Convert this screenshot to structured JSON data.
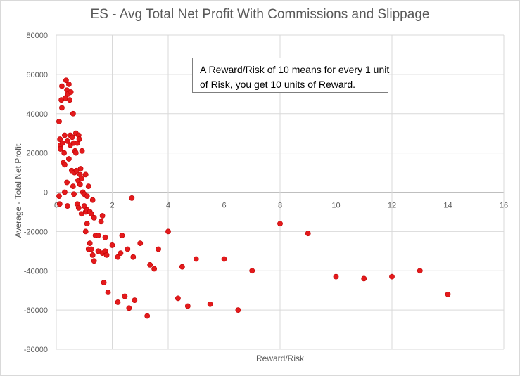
{
  "chart_data": {
    "type": "scatter",
    "title": "ES - Avg Total Net Profit With Commissions and Slippage",
    "xlabel": "Reward/Risk",
    "ylabel": "Average - Total Net Profit",
    "xlim": [
      0,
      16
    ],
    "ylim": [
      -80000,
      80000
    ],
    "x_ticks": [
      "0",
      "2",
      "4",
      "6",
      "8",
      "10",
      "12",
      "14",
      "16"
    ],
    "y_ticks": [
      "80000",
      "60000",
      "40000",
      "20000",
      "0",
      "-20000",
      "-40000",
      "-60000",
      "-80000"
    ],
    "grid": true,
    "legend": "none",
    "marker_color": "#e31a1c",
    "annotation": {
      "lines": [
        "A Reward/Risk of 10 means for every 1 unit",
        "of Risk, you get 10 units of Reward."
      ]
    },
    "points": [
      [
        0.1,
        36000
      ],
      [
        0.13,
        27000
      ],
      [
        0.15,
        24000
      ],
      [
        0.15,
        22000
      ],
      [
        0.18,
        47000
      ],
      [
        0.2,
        43000
      ],
      [
        0.2,
        54000
      ],
      [
        0.22,
        25000
      ],
      [
        0.25,
        15000
      ],
      [
        0.28,
        20000
      ],
      [
        0.3,
        29000
      ],
      [
        0.3,
        14000
      ],
      [
        0.33,
        48000
      ],
      [
        0.35,
        57000
      ],
      [
        0.38,
        52000
      ],
      [
        0.38,
        5000
      ],
      [
        0.4,
        26000
      ],
      [
        0.42,
        50000
      ],
      [
        0.45,
        55000
      ],
      [
        0.45,
        17000
      ],
      [
        0.48,
        47000
      ],
      [
        0.5,
        29000
      ],
      [
        0.5,
        24000
      ],
      [
        0.52,
        51000
      ],
      [
        0.55,
        11000
      ],
      [
        0.57,
        28000
      ],
      [
        0.6,
        40000
      ],
      [
        0.6,
        3000
      ],
      [
        0.62,
        25000
      ],
      [
        0.63,
        -1000
      ],
      [
        0.65,
        10000
      ],
      [
        0.67,
        21000
      ],
      [
        0.7,
        30000
      ],
      [
        0.7,
        20000
      ],
      [
        0.72,
        11000
      ],
      [
        0.75,
        25000
      ],
      [
        0.78,
        6000
      ],
      [
        0.8,
        29000
      ],
      [
        0.82,
        27000
      ],
      [
        0.85,
        9000
      ],
      [
        0.85,
        4000
      ],
      [
        0.87,
        12000
      ],
      [
        0.9,
        7000
      ],
      [
        0.92,
        21000
      ],
      [
        0.95,
        0
      ],
      [
        1.0,
        -1000
      ],
      [
        1.05,
        9000
      ],
      [
        1.1,
        -2000
      ],
      [
        0.1,
        -2000
      ],
      [
        0.12,
        -6000
      ],
      [
        0.3,
        0
      ],
      [
        0.4,
        -7000
      ],
      [
        0.75,
        -6000
      ],
      [
        0.8,
        -8000
      ],
      [
        0.9,
        -11000
      ],
      [
        1.0,
        -7000
      ],
      [
        1.05,
        -10000
      ],
      [
        1.1,
        -9000
      ],
      [
        1.15,
        3000
      ],
      [
        1.2,
        -10000
      ],
      [
        1.25,
        -11000
      ],
      [
        1.3,
        -4000
      ],
      [
        1.35,
        -13000
      ],
      [
        1.05,
        -20000
      ],
      [
        1.1,
        -16000
      ],
      [
        1.15,
        -29000
      ],
      [
        1.2,
        -26000
      ],
      [
        1.25,
        -29000
      ],
      [
        1.3,
        -32000
      ],
      [
        1.35,
        -35000
      ],
      [
        1.4,
        -22000
      ],
      [
        1.5,
        -22000
      ],
      [
        1.5,
        -30000
      ],
      [
        1.6,
        -15000
      ],
      [
        1.65,
        -12000
      ],
      [
        1.65,
        -31000
      ],
      [
        1.75,
        -23000
      ],
      [
        1.75,
        -30000
      ],
      [
        1.8,
        -32000
      ],
      [
        1.7,
        -46000
      ],
      [
        1.85,
        -51000
      ],
      [
        2.0,
        -27000
      ],
      [
        2.2,
        -56000
      ],
      [
        2.2,
        -33000
      ],
      [
        2.3,
        -31000
      ],
      [
        2.35,
        -22000
      ],
      [
        2.45,
        -53000
      ],
      [
        2.55,
        -29000
      ],
      [
        2.6,
        -59000
      ],
      [
        2.7,
        -3000
      ],
      [
        2.75,
        -33000
      ],
      [
        2.8,
        -55000
      ],
      [
        3.0,
        -26000
      ],
      [
        3.25,
        -63000
      ],
      [
        3.35,
        -37000
      ],
      [
        3.5,
        -39000
      ],
      [
        3.65,
        -29000
      ],
      [
        4.0,
        -20000
      ],
      [
        4.35,
        -54000
      ],
      [
        4.5,
        -38000
      ],
      [
        4.7,
        -58000
      ],
      [
        5.0,
        -34000
      ],
      [
        5.5,
        -57000
      ],
      [
        6.0,
        -34000
      ],
      [
        6.5,
        -60000
      ],
      [
        7.0,
        -40000
      ],
      [
        8.0,
        -16000
      ],
      [
        9.0,
        -21000
      ],
      [
        10.0,
        -43000
      ],
      [
        11.0,
        -44000
      ],
      [
        12.0,
        -43000
      ],
      [
        13.0,
        -40000
      ],
      [
        14.0,
        -52000
      ]
    ]
  }
}
